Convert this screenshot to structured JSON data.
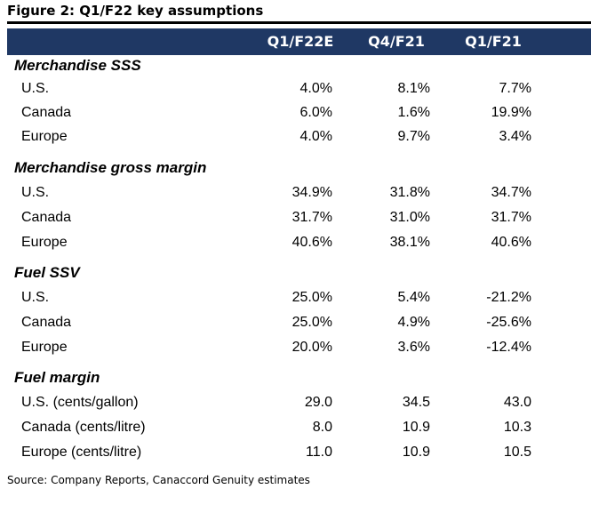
{
  "figure": {
    "title": "Figure 2: Q1/F22 key assumptions",
    "source": "Source: Company Reports, Canaccord Genuity estimates"
  },
  "columns": [
    "Q1/F22E",
    "Q4/F21",
    "Q1/F21"
  ],
  "colors": {
    "header_background": "#1f3864",
    "header_text": "#ffffff"
  },
  "sections": [
    {
      "title": "Merchandise SSS",
      "rows": [
        {
          "label": "U.S.",
          "values": [
            "4.0%",
            "8.1%",
            "7.7%"
          ]
        },
        {
          "label": "Canada",
          "values": [
            "6.0%",
            "1.6%",
            "19.9%"
          ]
        },
        {
          "label": "Europe",
          "values": [
            "4.0%",
            "9.7%",
            "3.4%"
          ]
        }
      ]
    },
    {
      "title": "Merchandise gross margin",
      "rows": [
        {
          "label": "U.S.",
          "values": [
            "34.9%",
            "31.8%",
            "34.7%"
          ]
        },
        {
          "label": "Canada",
          "values": [
            "31.7%",
            "31.0%",
            "31.7%"
          ]
        },
        {
          "label": "Europe",
          "values": [
            "40.6%",
            "38.1%",
            "40.6%"
          ]
        }
      ]
    },
    {
      "title": "Fuel SSV",
      "rows": [
        {
          "label": "U.S.",
          "values": [
            "25.0%",
            "5.4%",
            "-21.2%"
          ]
        },
        {
          "label": "Canada",
          "values": [
            "25.0%",
            "4.9%",
            "-25.6%"
          ]
        },
        {
          "label": "Europe",
          "values": [
            "20.0%",
            "3.6%",
            "-12.4%"
          ]
        }
      ]
    },
    {
      "title": "Fuel margin",
      "rows": [
        {
          "label": "U.S. (cents/gallon)",
          "values": [
            "29.0",
            "34.5",
            "43.0"
          ]
        },
        {
          "label": "Canada (cents/litre)",
          "values": [
            "8.0",
            "10.9",
            "10.3"
          ]
        },
        {
          "label": "Europe (cents/litre)",
          "values": [
            "11.0",
            "10.9",
            "10.5"
          ]
        }
      ]
    }
  ]
}
